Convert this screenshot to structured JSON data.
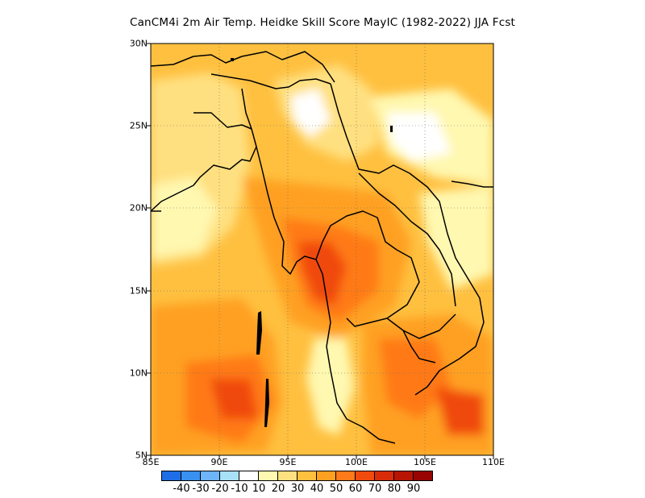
{
  "title": "CanCM4i 2m Air Temp. Heidke Skill Score MayIC (1982-2022) JJA Fcst",
  "map": {
    "projection": "lat-lon",
    "lon_range": [
      85,
      110
    ],
    "lat_range": [
      5,
      30
    ],
    "gridlines": "dotted",
    "lon_ticks": [
      "85E",
      "90E",
      "95E",
      "100E",
      "105E",
      "110E"
    ],
    "lat_ticks": [
      "5N",
      "10N",
      "15N",
      "20N",
      "25N",
      "30N"
    ],
    "coastline_color": "#000000"
  },
  "colorbar": {
    "colors": [
      "#1f6ee8",
      "#3a90f0",
      "#6db4f8",
      "#a8e0f8",
      "#ffffff",
      "#fff8b0",
      "#ffe080",
      "#ffc040",
      "#ffa020",
      "#ff7a18",
      "#f04a0c",
      "#d82c08",
      "#b81404",
      "#980402"
    ],
    "labels": [
      "-40",
      "-30",
      "-20",
      "-10",
      "10",
      "20",
      "30",
      "40",
      "50",
      "60",
      "70",
      "80",
      "90"
    ]
  }
}
